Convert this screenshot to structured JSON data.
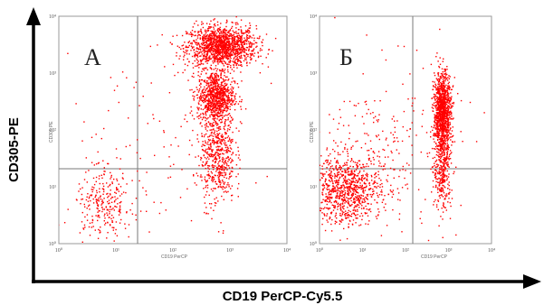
{
  "figure": {
    "y_axis_title": "CD305-PE",
    "x_axis_title": "CD19 PerCP-Cy5.5",
    "colors": {
      "dots": "#ff0000",
      "frame": "#7a7a7a",
      "arrow": "#000000"
    }
  },
  "chart_data": [
    {
      "type": "scatter",
      "panel_label": "А",
      "xscale": "log",
      "yscale": "log",
      "xlim": [
        1,
        10000
      ],
      "ylim": [
        1,
        10000
      ],
      "x_tick_labels": [
        "10⁰",
        "10¹",
        "10²",
        "10³",
        "10⁴"
      ],
      "y_tick_labels": [
        "10⁰",
        "10¹",
        "10²",
        "10³",
        "10⁴"
      ],
      "x_channel_label": "CD19 PerCP",
      "y_channel_label": "CD305 PE",
      "gates": {
        "x": 100,
        "y": 35
      },
      "grid": false,
      "populations": [
        {
          "x_center": 700,
          "y_center": 3000,
          "x_spread_decades": 0.3,
          "y_spread_decades": 0.18,
          "share": 0.44
        },
        {
          "x_center": 550,
          "y_center": 400,
          "x_spread_decades": 0.16,
          "y_spread_decades": 0.22,
          "share": 0.26
        },
        {
          "x_center": 600,
          "y_center": 40,
          "x_spread_decades": 0.15,
          "y_spread_decades": 0.45,
          "share": 0.18
        },
        {
          "x_center": 6,
          "y_center": 5,
          "x_spread_decades": 0.25,
          "y_spread_decades": 0.28,
          "share": 0.08
        },
        {
          "x_center": 40,
          "y_center": 40,
          "x_spread_decades": 0.9,
          "y_spread_decades": 0.9,
          "share": 0.04
        }
      ]
    },
    {
      "type": "scatter",
      "panel_label": "Б",
      "xscale": "log",
      "yscale": "log",
      "xlim": [
        1,
        10000
      ],
      "ylim": [
        1,
        10000
      ],
      "x_tick_labels": [
        "10⁰",
        "10¹",
        "10²",
        "10³",
        "10⁴"
      ],
      "y_tick_labels": [
        "10⁰",
        "10¹",
        "10²",
        "10³",
        "10⁴"
      ],
      "x_channel_label": "CD19 PerCP",
      "y_channel_label": "CD305 PE",
      "gates": {
        "x": 100,
        "y": 35
      },
      "grid": false,
      "populations": [
        {
          "x_center": 700,
          "y_center": 200,
          "x_spread_decades": 0.1,
          "y_spread_decades": 0.35,
          "share": 0.45
        },
        {
          "x_center": 700,
          "y_center": 20,
          "x_spread_decades": 0.1,
          "y_spread_decades": 0.35,
          "share": 0.12
        },
        {
          "x_center": 4,
          "y_center": 9,
          "x_spread_decades": 0.4,
          "y_spread_decades": 0.3,
          "share": 0.33
        },
        {
          "x_center": 40,
          "y_center": 40,
          "x_spread_decades": 0.8,
          "y_spread_decades": 0.8,
          "share": 0.1
        }
      ]
    }
  ]
}
